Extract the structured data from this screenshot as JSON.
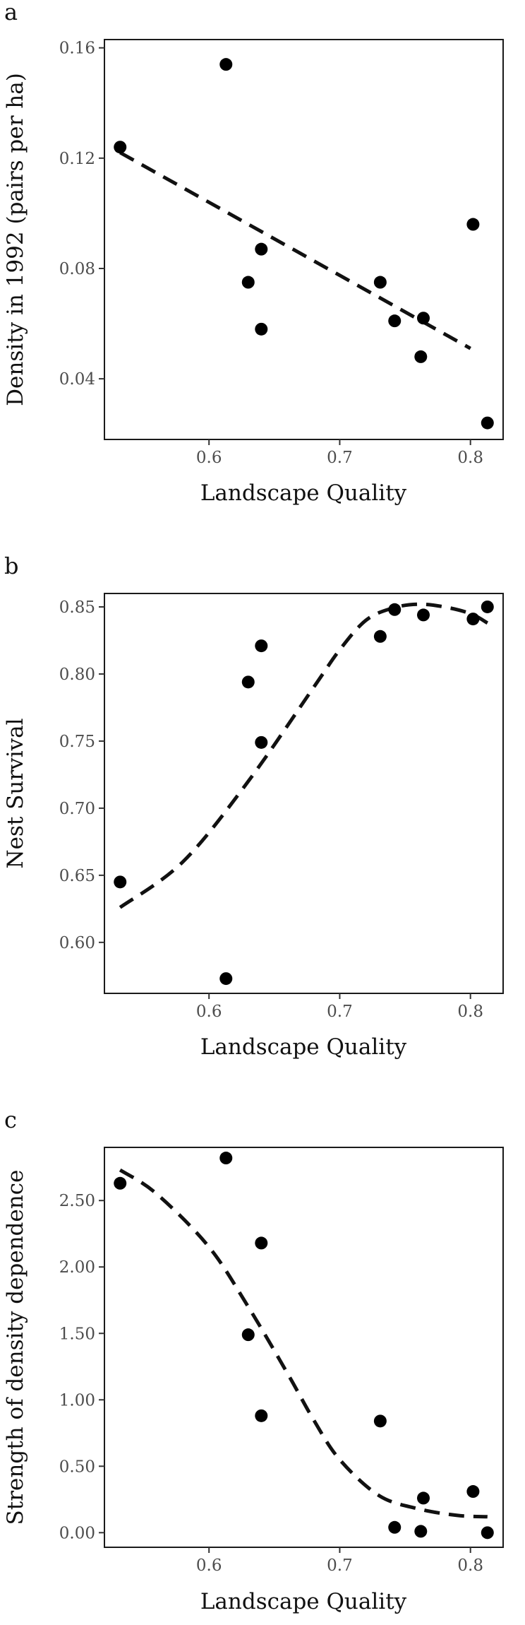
{
  "chart_data": [
    {
      "panel": "a",
      "type": "scatter",
      "xlabel": "Landscape Quality",
      "ylabel": "Density in 1992 (pairs per ha)",
      "xlim": [
        0.52,
        0.825
      ],
      "ylim": [
        0.018,
        0.163
      ],
      "xticks": [
        0.6,
        0.7,
        0.8
      ],
      "xtick_labels": [
        "0.6",
        "0.7",
        "0.8"
      ],
      "yticks": [
        0.04,
        0.08,
        0.12,
        0.16
      ],
      "ytick_labels": [
        "0.04",
        "0.08",
        "0.12",
        "0.16"
      ],
      "points": {
        "x": [
          0.532,
          0.613,
          0.63,
          0.64,
          0.64,
          0.731,
          0.742,
          0.762,
          0.764,
          0.802,
          0.813
        ],
        "y": [
          0.124,
          0.154,
          0.075,
          0.087,
          0.058,
          0.075,
          0.061,
          0.048,
          0.062,
          0.096,
          0.024
        ]
      },
      "fit": {
        "style": "dashed",
        "x": [
          0.532,
          0.8
        ],
        "y": [
          0.122,
          0.051
        ]
      },
      "grid": false
    },
    {
      "panel": "b",
      "type": "scatter",
      "xlabel": "Landscape Quality",
      "ylabel": "Nest Survival",
      "xlim": [
        0.52,
        0.825
      ],
      "ylim": [
        0.562,
        0.86
      ],
      "xticks": [
        0.6,
        0.7,
        0.8
      ],
      "xtick_labels": [
        "0.6",
        "0.7",
        "0.8"
      ],
      "yticks": [
        0.6,
        0.65,
        0.7,
        0.75,
        0.8,
        0.85
      ],
      "ytick_labels": [
        "0.60",
        "0.65",
        "0.70",
        "0.75",
        "0.80",
        "0.85"
      ],
      "points": {
        "x": [
          0.532,
          0.613,
          0.63,
          0.64,
          0.64,
          0.731,
          0.742,
          0.764,
          0.802,
          0.813
        ],
        "y": [
          0.645,
          0.573,
          0.794,
          0.821,
          0.749,
          0.828,
          0.848,
          0.844,
          0.841,
          0.85
        ]
      },
      "fit": {
        "style": "dashed",
        "x": [
          0.532,
          0.58,
          0.63,
          0.68,
          0.7,
          0.72,
          0.74,
          0.76,
          0.78,
          0.8,
          0.813
        ],
        "y": [
          0.626,
          0.66,
          0.72,
          0.79,
          0.818,
          0.84,
          0.849,
          0.852,
          0.85,
          0.845,
          0.838
        ]
      },
      "grid": false
    },
    {
      "panel": "c",
      "type": "scatter",
      "xlabel": "Landscape Quality",
      "ylabel": "Strength of density dependence",
      "xlim": [
        0.52,
        0.825
      ],
      "ylim": [
        -0.11,
        2.9
      ],
      "xticks": [
        0.6,
        0.7,
        0.8
      ],
      "xtick_labels": [
        "0.6",
        "0.7",
        "0.8"
      ],
      "yticks": [
        0.0,
        0.5,
        1.0,
        1.5,
        2.0,
        2.5
      ],
      "ytick_labels": [
        "0.00",
        "0.50",
        "1.00",
        "1.50",
        "2.00",
        "2.50"
      ],
      "points": {
        "x": [
          0.532,
          0.613,
          0.63,
          0.64,
          0.64,
          0.731,
          0.742,
          0.762,
          0.764,
          0.802,
          0.813
        ],
        "y": [
          2.63,
          2.82,
          1.49,
          2.18,
          0.88,
          0.84,
          0.04,
          0.01,
          0.26,
          0.31,
          0.0
        ]
      },
      "fit": {
        "style": "dashed",
        "x": [
          0.532,
          0.56,
          0.6,
          0.63,
          0.66,
          0.68,
          0.7,
          0.73,
          0.76,
          0.79,
          0.813
        ],
        "y": [
          2.73,
          2.55,
          2.15,
          1.7,
          1.2,
          0.85,
          0.55,
          0.28,
          0.18,
          0.13,
          0.12
        ]
      },
      "grid": false
    }
  ]
}
